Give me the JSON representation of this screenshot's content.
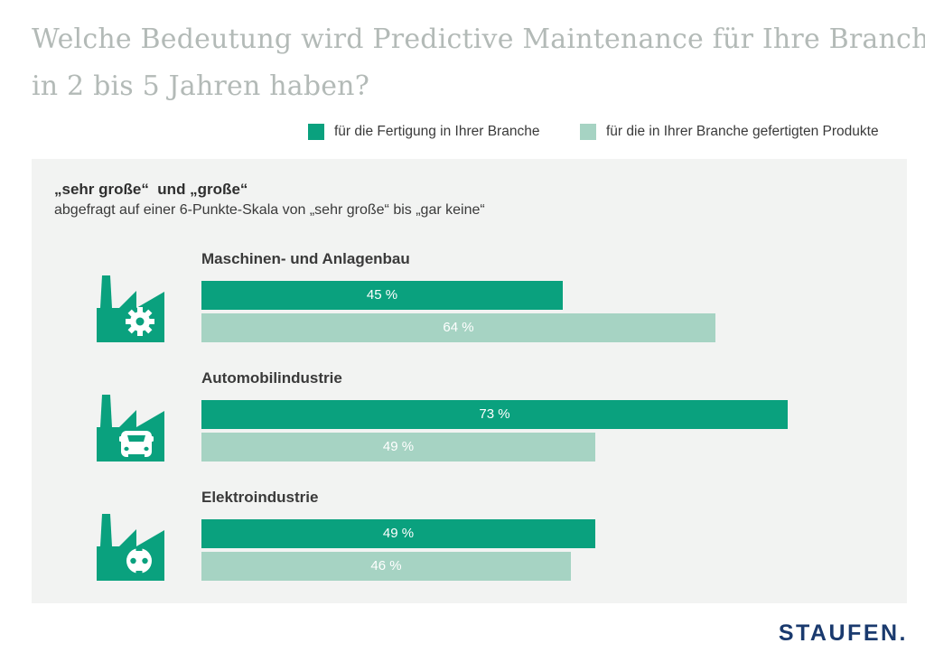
{
  "title": {
    "line1": "Welche Bedeutung wird Predictive Maintenance für Ihre Branche",
    "line2": "in 2 bis 5 Jahren haben?"
  },
  "legend": {
    "items": [
      {
        "label": "für die Fertigung in Ihrer Branche",
        "color": "#0aa17e"
      },
      {
        "label": "für die in Ihrer Branche gefertigten Produkte",
        "color": "#a6d3c3"
      }
    ]
  },
  "panel": {
    "heading": "„sehr große“  und „große“",
    "subheading": "abgefragt auf einer 6-Punkte-Skala von „sehr große“ bis „gar keine“"
  },
  "chart_data": {
    "type": "bar",
    "orientation": "horizontal",
    "unit": "%",
    "xlim": [
      0,
      100
    ],
    "grid": false,
    "legend_position": "top",
    "categories": [
      "Maschinen- und Anlagenbau",
      "Automobilindustrie",
      "Elektroindustrie"
    ],
    "series": [
      {
        "name": "für die Fertigung in Ihrer Branche",
        "color": "#0aa17e",
        "values": [
          45,
          73,
          49
        ]
      },
      {
        "name": "für die in Ihrer Branche gefertigten Produkte",
        "color": "#a6d3c3",
        "values": [
          64,
          49,
          46
        ]
      }
    ]
  },
  "groups": [
    {
      "label": "Maschinen- und Anlagenbau",
      "icon": "factory-gear-icon",
      "primary_label": "45 %",
      "secondary_label": "64 %"
    },
    {
      "label": "Automobilindustrie",
      "icon": "factory-car-icon",
      "primary_label": "73 %",
      "secondary_label": "49 %"
    },
    {
      "label": "Elektroindustrie",
      "icon": "factory-plug-icon",
      "primary_label": "49 %",
      "secondary_label": "46 %"
    }
  ],
  "colors": {
    "primary_green": "#0aa17e",
    "light_green": "#a6d3c3",
    "panel_bg": "#f2f3f2",
    "title_gray": "#b3bab7",
    "text_dark": "#3a3a3a",
    "logo_navy": "#1a3a6e"
  },
  "logo": {
    "text": "STAUFEN."
  }
}
